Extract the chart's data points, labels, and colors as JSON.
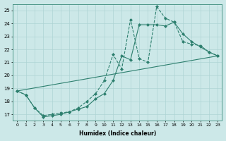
{
  "xlabel": "Humidex (Indice chaleur)",
  "ylabel": "",
  "bg_color": "#cce8e8",
  "line_color": "#2d7f6e",
  "xlim": [
    -0.5,
    23.5
  ],
  "ylim": [
    16.5,
    25.5
  ],
  "xtick_labels": [
    "0",
    "1",
    "2",
    "3",
    "4",
    "5",
    "6",
    "7",
    "8",
    "9",
    "10",
    "11",
    "12",
    "13",
    "14",
    "15",
    "16",
    "17",
    "18",
    "19",
    "20",
    "21",
    "22",
    "23"
  ],
  "ytick_labels": [
    "17",
    "18",
    "19",
    "20",
    "21",
    "22",
    "23",
    "24",
    "25"
  ],
  "line1_x": [
    0,
    1,
    2,
    3,
    4,
    5,
    6,
    7,
    8,
    9,
    10,
    11,
    12,
    13,
    14,
    15,
    16,
    17,
    18,
    19,
    20,
    21,
    22,
    23
  ],
  "line1_y": [
    18.8,
    18.5,
    17.5,
    16.8,
    16.9,
    17.0,
    17.2,
    17.4,
    17.6,
    18.2,
    18.6,
    19.6,
    21.5,
    21.2,
    23.9,
    23.9,
    23.9,
    23.8,
    24.1,
    23.2,
    22.6,
    22.2,
    21.8,
    21.5
  ],
  "line2_x": [
    0,
    1,
    2,
    3,
    4,
    5,
    6,
    7,
    8,
    9,
    10,
    11,
    12,
    13,
    14,
    15,
    16,
    17,
    18,
    19,
    20,
    21,
    22,
    23
  ],
  "line2_y": [
    18.8,
    18.5,
    17.5,
    16.9,
    17.0,
    17.1,
    17.2,
    17.5,
    18.0,
    18.6,
    19.6,
    21.6,
    20.5,
    24.3,
    21.3,
    21.0,
    25.3,
    24.4,
    24.1,
    22.6,
    22.4,
    22.3,
    21.8,
    21.5
  ],
  "line3_x": [
    0,
    23
  ],
  "line3_y": [
    18.8,
    21.5
  ]
}
